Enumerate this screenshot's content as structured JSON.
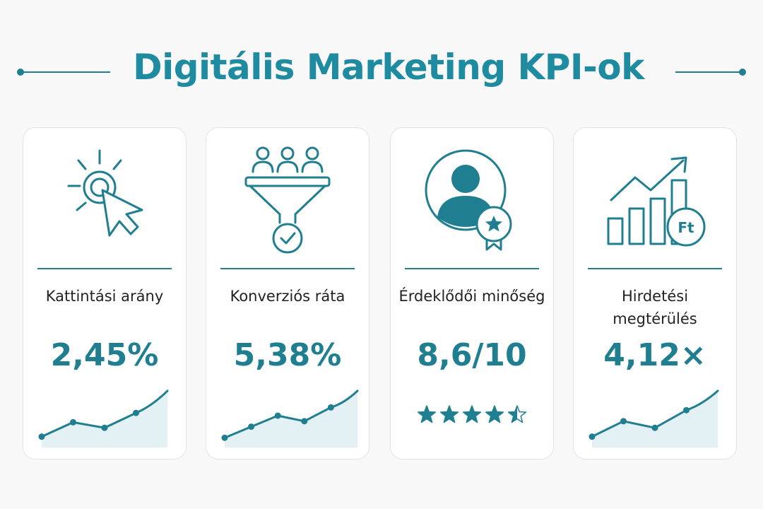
{
  "title": "Digitális Marketing KPI-ok",
  "accent_color": "#1f7f91",
  "cards": [
    {
      "icon": "cursor-click-icon",
      "label": "Kattintási arány",
      "value": "2,45%",
      "trend": [
        0.12,
        0.38,
        0.28,
        0.55,
        0.95
      ]
    },
    {
      "icon": "conversion-funnel-icon",
      "label": "Konverziós ráta",
      "value": "5,38%",
      "trend": [
        0.1,
        0.3,
        0.5,
        0.4,
        0.65,
        0.95
      ]
    },
    {
      "icon": "user-award-icon",
      "label": "Érdeklődői minőség",
      "value": "8,6/10",
      "rating": 4.5,
      "rating_max": 5
    },
    {
      "icon": "bar-growth-currency-icon",
      "label": "Hirdetési megtérülés",
      "value": "4,12×",
      "trend": [
        0.12,
        0.4,
        0.28,
        0.6,
        0.95
      ],
      "currency_badge": "Ft"
    }
  ]
}
